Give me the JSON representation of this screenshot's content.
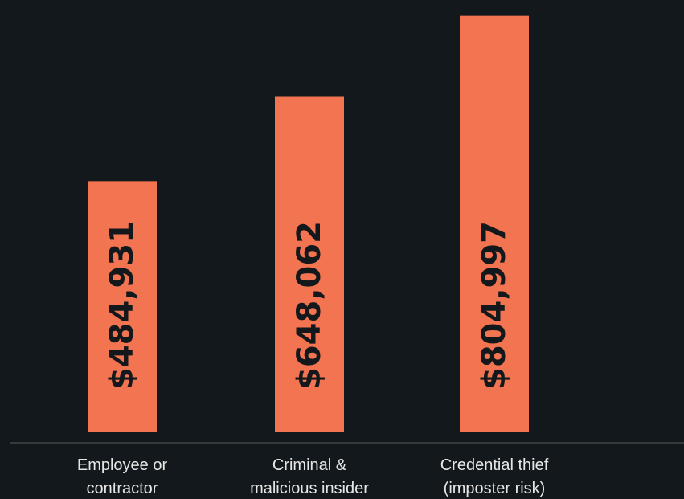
{
  "colors": {
    "background": "#12181b",
    "bar": "#f37450",
    "axis": "#555a5e",
    "label_text": "#e6e6e6",
    "value_text": "#12181b"
  },
  "chart_data": {
    "type": "bar",
    "categories": [
      [
        "Employee or",
        "contractor"
      ],
      [
        "Criminal &",
        "malicious insider"
      ],
      [
        "Credential thief",
        "(imposter risk)"
      ]
    ],
    "values": [
      484931,
      648062,
      804997
    ],
    "value_labels": [
      "$484,931",
      "$648,062",
      "$804,997"
    ],
    "ylim": [
      0,
      820000
    ],
    "grid": false,
    "legend": "none"
  }
}
